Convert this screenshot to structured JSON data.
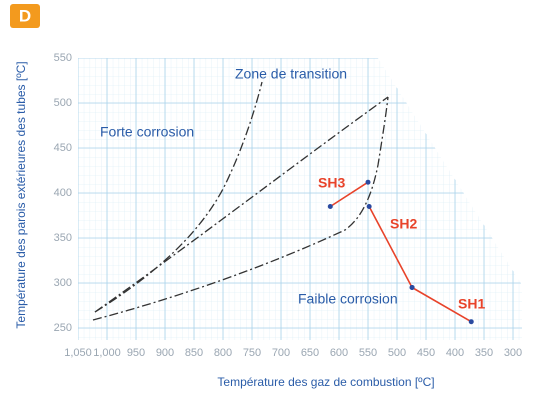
{
  "chart_data": {
    "type": "line",
    "badge": "D",
    "xlabel": "Température des gaz de combustion [ºC]",
    "ylabel": "Température des parois extérieures des tubes [ºC]",
    "annotations": [
      "Zone de transition",
      "Forte corrosion",
      "Faible corrosion"
    ],
    "xlim": [
      1050,
      300
    ],
    "ylim": [
      240,
      550
    ],
    "xticks": [
      {
        "value": 1050,
        "label": "1,050"
      },
      {
        "value": 1000,
        "label": "1,000"
      },
      950,
      900,
      850,
      800,
      750,
      700,
      650,
      600,
      550,
      500,
      450,
      400,
      350,
      300
    ],
    "yticks": [
      250,
      300,
      350,
      400,
      450,
      500,
      550
    ],
    "grid": true,
    "series": [
      {
        "name": "SH3",
        "color": "#e8432a",
        "x": [
          615,
          550
        ],
        "y": [
          385,
          412
        ]
      },
      {
        "name": "SH2",
        "color": "#e8432a",
        "x": [
          548,
          474
        ],
        "y": [
          385,
          295
        ]
      },
      {
        "name": "SH1",
        "color": "#e8432a",
        "x": [
          474,
          372
        ],
        "y": [
          295,
          257
        ]
      }
    ]
  }
}
